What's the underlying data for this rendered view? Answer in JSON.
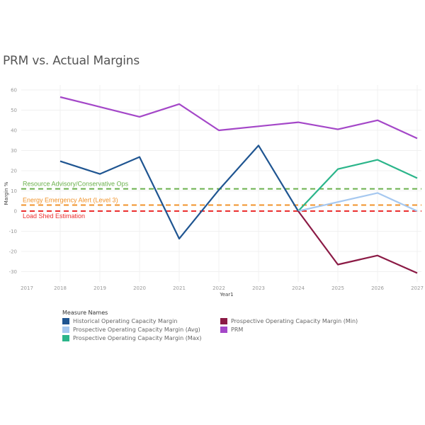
{
  "chart_data": {
    "type": "line",
    "title": "PRM vs. Actual Margins",
    "xlabel": "Year1",
    "ylabel": "Margin %",
    "x": [
      2017,
      2018,
      2019,
      2020,
      2021,
      2022,
      2023,
      2024,
      2025,
      2026,
      2027
    ],
    "x_tick_labels": [
      "2017",
      "2018",
      "2019",
      "2020",
      "2021",
      "2022",
      "2023",
      "2024",
      "2025",
      "2026",
      "2027"
    ],
    "ylim": [
      -35,
      62
    ],
    "y_ticks": [
      60,
      50,
      40,
      30,
      20,
      10,
      0,
      -10,
      -20,
      -30
    ],
    "grid": true,
    "series": [
      {
        "name": "PRM",
        "color": "#a447c8",
        "x": [
          2018,
          2019,
          2020,
          2021,
          2022,
          2023,
          2024,
          2025,
          2026,
          2027
        ],
        "values": [
          56.5,
          51.6,
          46.7,
          53,
          40,
          42,
          44,
          40.5,
          45,
          36
        ]
      },
      {
        "name": "Historical Operating Capacity Margin",
        "color": "#1f5591",
        "x": [
          2018,
          2019,
          2020,
          2021,
          2022,
          2023,
          2024
        ],
        "values": [
          24.7,
          18.4,
          26.8,
          -13.7,
          10.5,
          32.5,
          0
        ]
      },
      {
        "name": "Prospective Operating Capacity Margin (Max)",
        "color": "#2bb58a",
        "x": [
          2024,
          2025,
          2026,
          2027
        ],
        "values": [
          0,
          20.8,
          25.4,
          16.3
        ]
      },
      {
        "name": "Prospective Operating Capacity Margin (Avg)",
        "color": "#a6c8f0",
        "x": [
          2024,
          2025,
          2026,
          2027
        ],
        "values": [
          0,
          4.5,
          9,
          0
        ]
      },
      {
        "name": "Prospective Operating Capacity Margin (Min)",
        "color": "#8b1a45",
        "x": [
          2024,
          2025,
          2026,
          2027
        ],
        "values": [
          0,
          -26.5,
          -22,
          -30.7
        ]
      }
    ],
    "reference_lines": [
      {
        "label": "Resource Advisory/Conservative Ops",
        "value": 11,
        "color": "#6ab04c"
      },
      {
        "label": "Energy Emergency Alert (Level 3)",
        "value": 3,
        "color": "#f0932b"
      },
      {
        "label": "Load Shed Estimation",
        "value": 0,
        "color": "#eb2f2f"
      }
    ],
    "legend": {
      "title": "Measure Names",
      "placement": "bottom-left",
      "items": [
        {
          "label": "Historical Operating Capacity Margin",
          "color": "#1f5591"
        },
        {
          "label": "Prospective Operating Capacity Margin (Min)",
          "color": "#8b1a45"
        },
        {
          "label": "Prospective Operating Capacity Margin (Avg)",
          "color": "#a6c8f0"
        },
        {
          "label": "PRM",
          "color": "#a447c8"
        },
        {
          "label": "Prospective Operating Capacity Margin (Max)",
          "color": "#2bb58a"
        }
      ]
    }
  }
}
